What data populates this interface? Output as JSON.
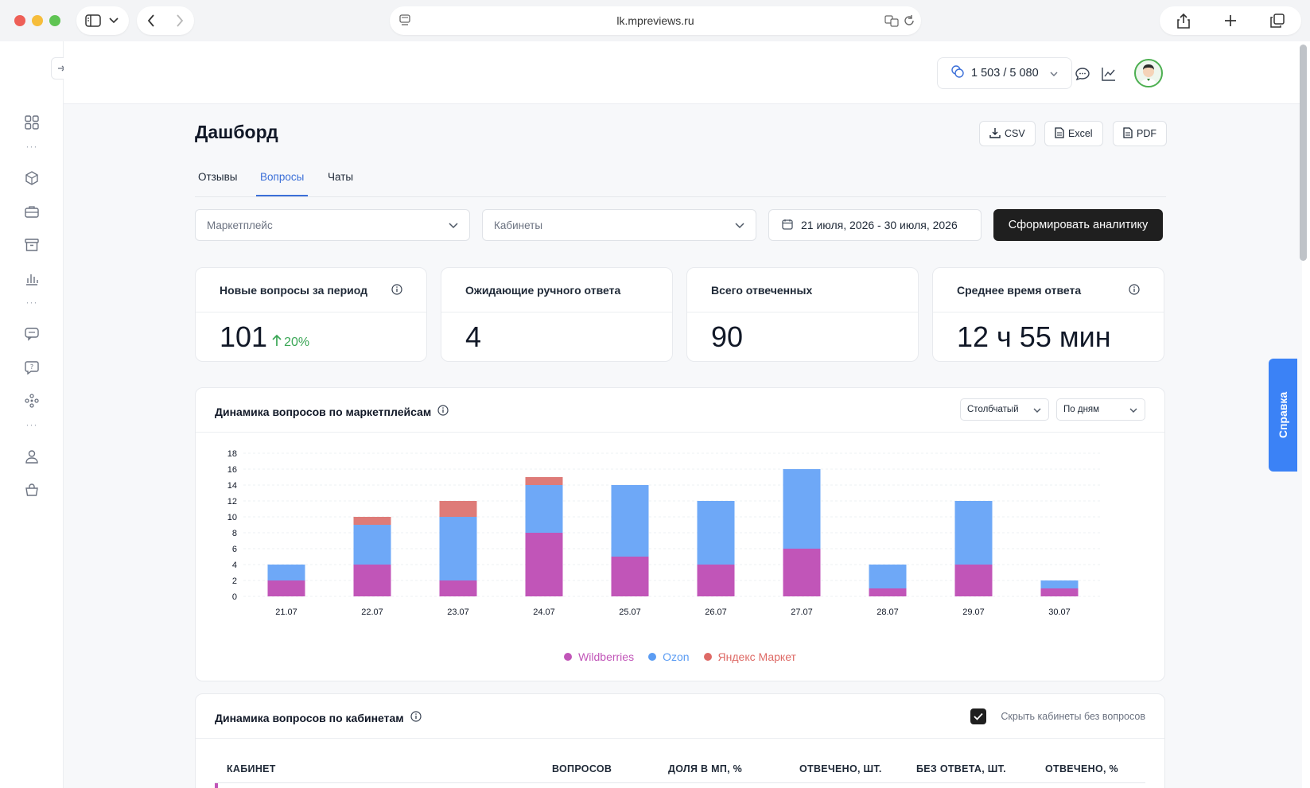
{
  "browser": {
    "url": "lk.mpreviews.ru"
  },
  "topbar": {
    "credits": "1 503 / 5 080"
  },
  "page": {
    "title": "Дашборд",
    "export": {
      "csv": "CSV",
      "excel": "Excel",
      "pdf": "PDF"
    },
    "tabs": [
      {
        "label": "Отзывы"
      },
      {
        "label": "Вопросы",
        "active": true
      },
      {
        "label": "Чаты"
      }
    ]
  },
  "filters": {
    "marketplace_placeholder": "Маркетплейс",
    "cabinets_placeholder": "Кабинеты",
    "date_range": "21 июля, 2026 - 30 июля, 2026",
    "submit": "Сформировать аналитику"
  },
  "kpis": [
    {
      "title": "Новые вопросы за период",
      "value": "101",
      "trend": "20%",
      "info": true
    },
    {
      "title": "Ожидающие ручного ответа",
      "value": "4"
    },
    {
      "title": "Всего отвеченных",
      "value": "90"
    },
    {
      "title": "Среднее время ответа",
      "value": "12 ч 55 мин",
      "info": true
    }
  ],
  "marketplace_chart": {
    "title": "Динамика вопросов по маркетплейсам",
    "type_select": "Столбчатый",
    "period_select": "По дням"
  },
  "chart_data": {
    "type": "bar",
    "stacked": true,
    "categories": [
      "21.07",
      "22.07",
      "23.07",
      "24.07",
      "25.07",
      "26.07",
      "27.07",
      "28.07",
      "29.07",
      "30.07"
    ],
    "series": [
      {
        "name": "Wildberries",
        "color": "#c155b8",
        "values": [
          2,
          4,
          2,
          8,
          5,
          4,
          6,
          1,
          4,
          1
        ]
      },
      {
        "name": "Ozon",
        "color": "#6ea8f7",
        "values": [
          2,
          5,
          8,
          6,
          9,
          8,
          10,
          3,
          8,
          1
        ]
      },
      {
        "name": "Яндекс Маркет",
        "color": "#de7b78",
        "values": [
          0,
          1,
          2,
          1,
          0,
          0,
          0,
          0,
          0,
          0
        ]
      }
    ],
    "yticks": [
      0,
      2,
      4,
      6,
      8,
      10,
      12,
      14,
      16,
      18
    ],
    "ylim": [
      0,
      18
    ],
    "grid": true,
    "legend": "bottom"
  },
  "cabinets_table": {
    "title": "Динамика вопросов по кабинетам",
    "hide_empty_label": "Скрыть кабинеты без вопросов",
    "columns": [
      "КАБИНЕТ",
      "ВОПРОСОВ",
      "ДОЛЯ В МП, %",
      "ОТВЕЧЕНО, ШТ.",
      "БЕЗ ОТВЕТА, ШТ.",
      "ОТВЕЧЕНО, %"
    ]
  },
  "help": {
    "label": "Справка"
  }
}
